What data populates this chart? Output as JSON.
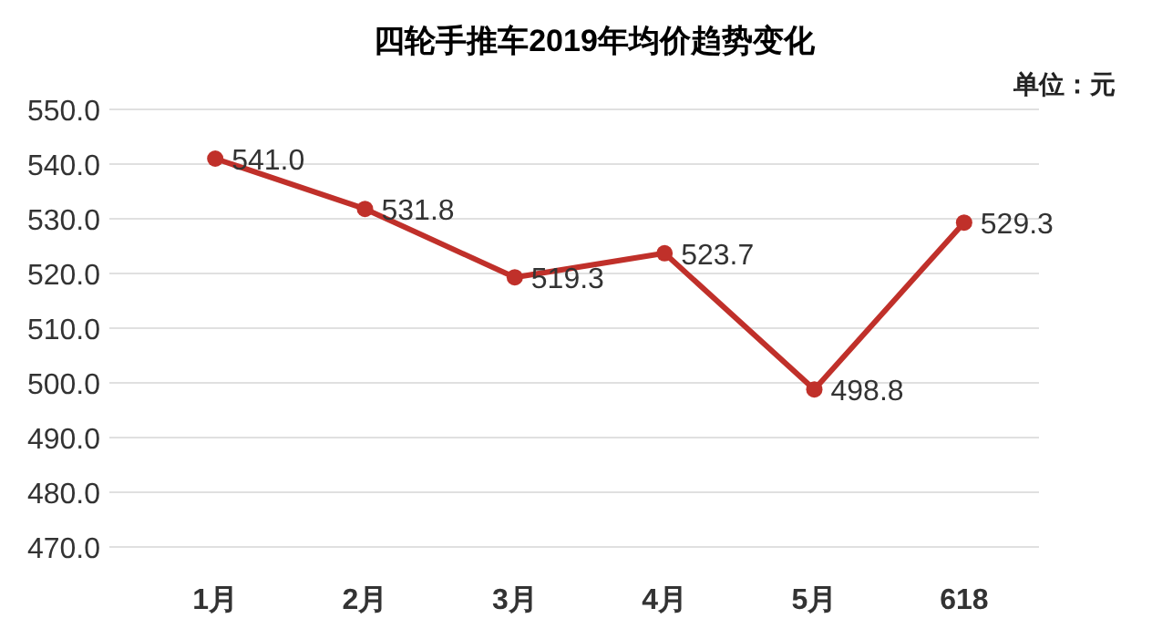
{
  "chart_data": {
    "type": "line",
    "title": "四轮手推车2019年均价趋势变化",
    "annotations": [
      "单位：元"
    ],
    "categories": [
      "1月",
      "2月",
      "3月",
      "4月",
      "5月",
      "618"
    ],
    "series": [
      {
        "color": "#c0302a",
        "values": [
          541.0,
          531.8,
          519.3,
          523.7,
          498.8,
          529.3
        ],
        "value_labels": [
          "541.0",
          "531.8",
          "519.3",
          "523.7",
          "498.8",
          "529.3"
        ]
      }
    ],
    "ylim": [
      470,
      550
    ],
    "yticks": [
      {
        "value": 470,
        "label": "470.0"
      },
      {
        "value": 480,
        "label": "480.0"
      },
      {
        "value": 490,
        "label": "490.0"
      },
      {
        "value": 500,
        "label": "500.0"
      },
      {
        "value": 510,
        "label": "510.0"
      },
      {
        "value": 520,
        "label": "520.0"
      },
      {
        "value": 530,
        "label": "530.0"
      },
      {
        "value": 540,
        "label": "540.0"
      },
      {
        "value": 550,
        "label": "550.0"
      }
    ],
    "grid": "y",
    "marker": "circle",
    "line_style": "solid"
  }
}
